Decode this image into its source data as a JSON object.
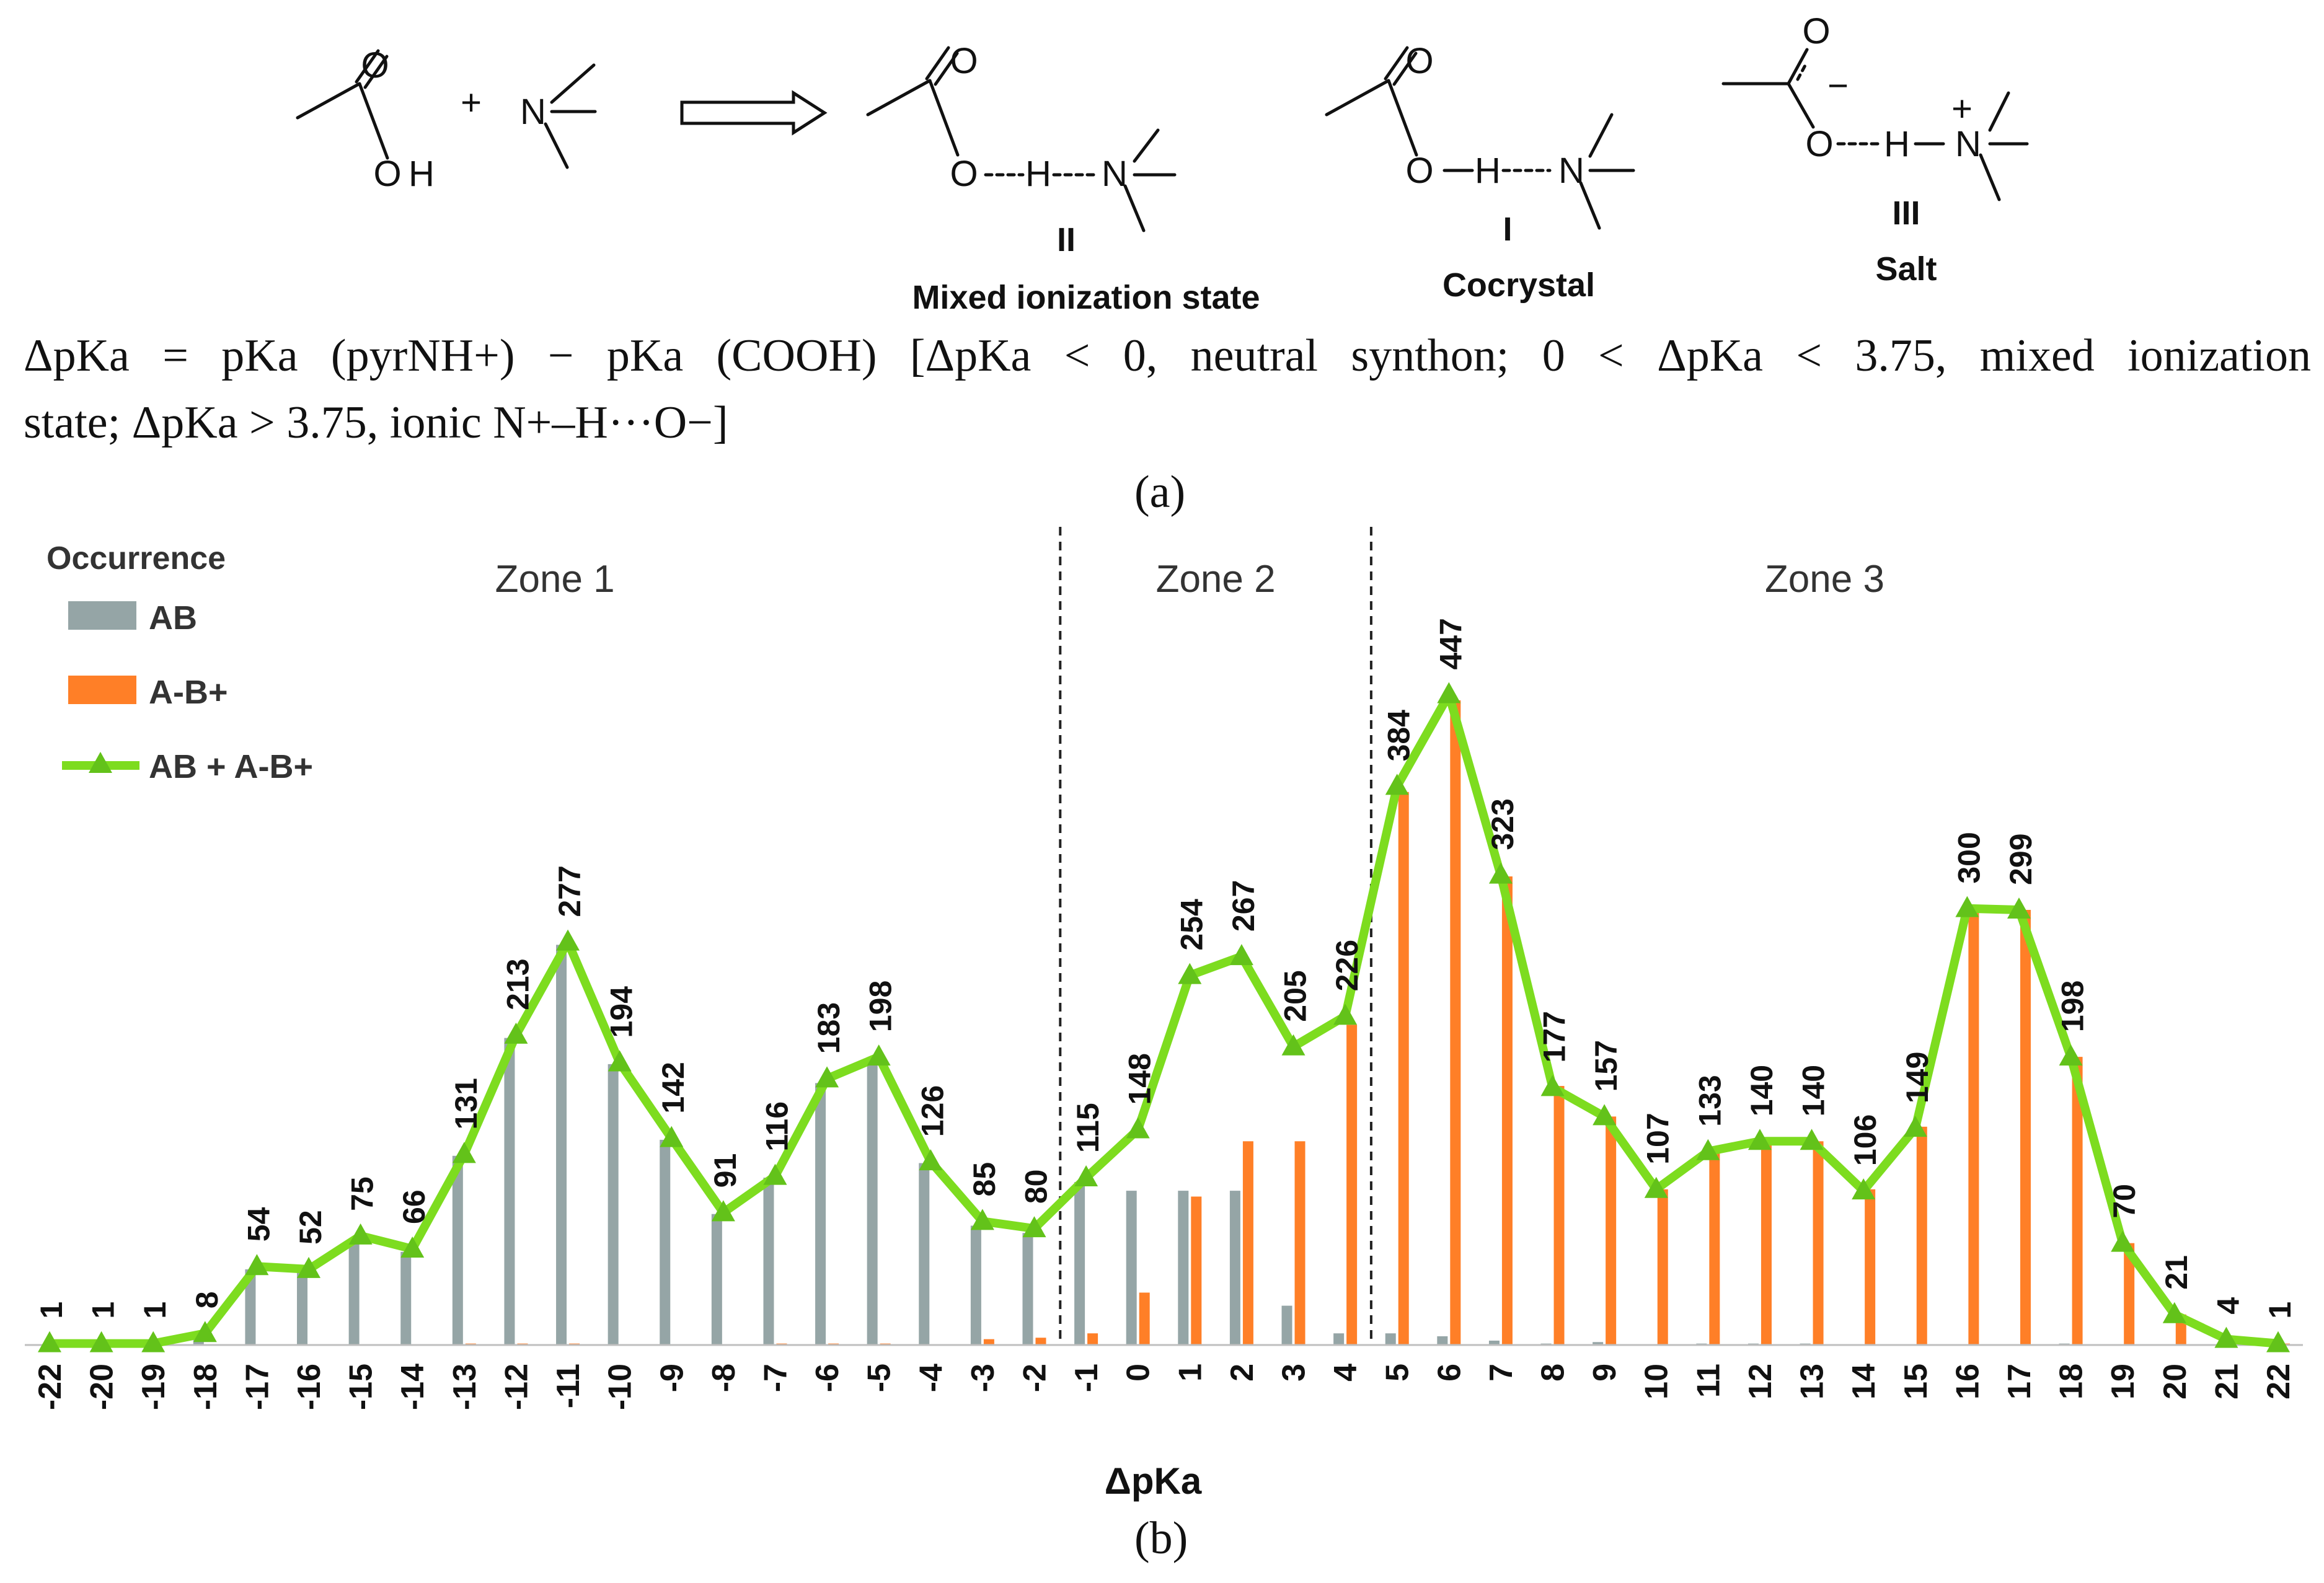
{
  "scheme": {
    "plus": "+",
    "atoms": {
      "O": "O",
      "H": "H",
      "N": "N",
      "minus": "−",
      "plus_charge": "+"
    },
    "structures": [
      {
        "numeral": "II",
        "name": "Mixed ionization state"
      },
      {
        "numeral": "I",
        "name": "Cocrystal"
      },
      {
        "numeral": "III",
        "name": "Salt"
      }
    ],
    "definition_line1": "ΔpKa = pKa (pyrNH+) − pKa (COOH) [ΔpKa < 0, neutral synthon; 0 < ΔpKa < 3.75, mixed ionization",
    "definition_line2": "state; ΔpKa > 3.75, ionic N+–H···O−]",
    "caption_a": "(a)",
    "caption_b": "(b)"
  },
  "chart_data": {
    "type": "bar",
    "xlabel": "ΔpKa",
    "legend_title": "Occurrence",
    "legend_position": "top-left",
    "zones": [
      {
        "label": "Zone 1",
        "from": -22,
        "to": -1.5
      },
      {
        "label": "Zone 2",
        "from": -1.5,
        "to": 4.5
      },
      {
        "label": "Zone 3",
        "from": 4.5,
        "to": 22
      }
    ],
    "zone_boundaries": [
      -1.5,
      4.5
    ],
    "categories": [
      "-22",
      "-20",
      "-19",
      "-18",
      "-17",
      "-16",
      "-15",
      "-14",
      "-13",
      "-12",
      "-11",
      "-10",
      "-9",
      "-8",
      "-7",
      "-6",
      "-5",
      "-4",
      "-3",
      "-2",
      "-1",
      "0",
      "1",
      "2",
      "3",
      "4",
      "5",
      "6",
      "7",
      "8",
      "9",
      "10",
      "11",
      "12",
      "13",
      "14",
      "15",
      "16",
      "17",
      "18",
      "19",
      "20",
      "21",
      "22"
    ],
    "ylim": [
      0,
      460
    ],
    "series": [
      {
        "name": "AB",
        "kind": "bar",
        "color": "#95a5a6",
        "values": [
          0,
          0,
          0,
          5,
          52,
          50,
          72,
          64,
          130,
          211,
          275,
          193,
          141,
          90,
          115,
          180,
          197,
          125,
          82,
          77,
          112,
          106,
          106,
          106,
          27,
          8,
          8,
          6,
          3,
          1,
          2,
          0,
          1,
          1,
          1,
          0,
          0,
          0,
          0,
          1,
          0,
          0,
          0,
          0
        ]
      },
      {
        "name": "A-B+",
        "kind": "bar",
        "color": "#ff7f27",
        "values": [
          0,
          0,
          0,
          0,
          0,
          0,
          0,
          0,
          1,
          1,
          1,
          0,
          0,
          0,
          1,
          1,
          1,
          0,
          4,
          5,
          8,
          36,
          102,
          140,
          140,
          220,
          380,
          443,
          322,
          178,
          157,
          107,
          133,
          140,
          140,
          107,
          150,
          300,
          299,
          198,
          70,
          21,
          4,
          1
        ]
      },
      {
        "name": "AB + A-B+",
        "kind": "line",
        "color": "#7ddc1f",
        "values": [
          1,
          1,
          1,
          8,
          54,
          52,
          75,
          66,
          131,
          213,
          277,
          194,
          142,
          91,
          116,
          183,
          198,
          126,
          85,
          80,
          115,
          148,
          254,
          267,
          205,
          226,
          384,
          447,
          323,
          177,
          157,
          107,
          133,
          140,
          140,
          106,
          149,
          300,
          299,
          198,
          70,
          21,
          4,
          1
        ]
      }
    ],
    "data_labels": [
      1,
      1,
      1,
      8,
      54,
      52,
      75,
      66,
      131,
      213,
      277,
      194,
      142,
      91,
      116,
      183,
      198,
      126,
      85,
      80,
      115,
      148,
      254,
      267,
      205,
      226,
      384,
      447,
      323,
      177,
      157,
      107,
      133,
      140,
      140,
      106,
      149,
      300,
      299,
      198,
      70,
      21,
      4,
      1
    ]
  }
}
